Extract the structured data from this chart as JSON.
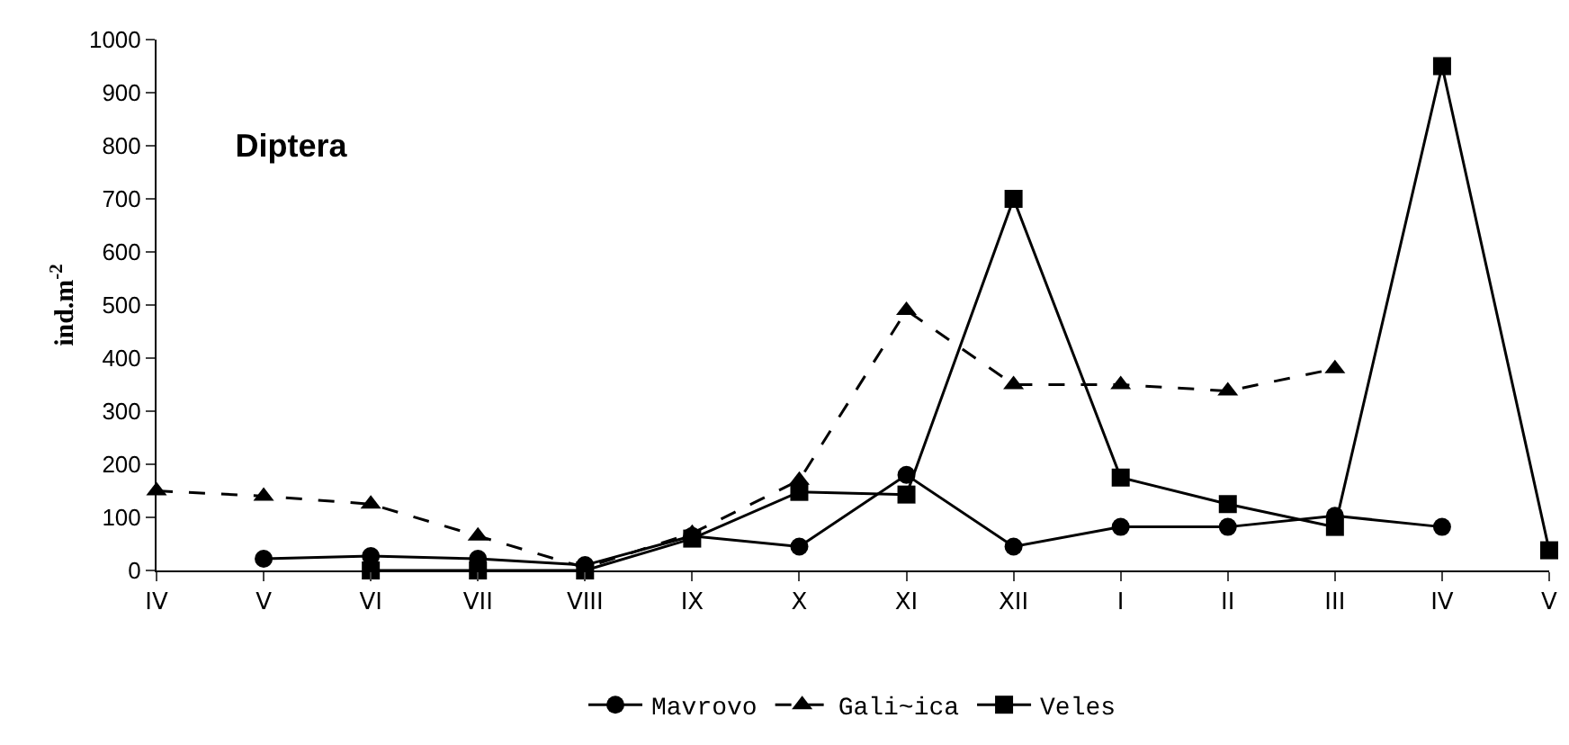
{
  "chart_data": {
    "type": "line",
    "title": "Diptera",
    "ylabel": "ind.m$^{-2}$",
    "categories": [
      "IV",
      "V",
      "VI",
      "VII",
      "VIII",
      "IX",
      "X",
      "XI",
      "XII",
      "I",
      "II",
      "III",
      "IV",
      "V"
    ],
    "series": [
      {
        "name": "Mavrovo",
        "color": "#000000",
        "marker": "circle",
        "line_style": "solid",
        "values": [
          null,
          22,
          27,
          22,
          10,
          65,
          45,
          180,
          45,
          82,
          82,
          103,
          82,
          null
        ]
      },
      {
        "name": "Gali~ica",
        "color": "#000000",
        "marker": "triangle",
        "line_style": "dashed",
        "values": [
          150,
          140,
          125,
          65,
          5,
          70,
          170,
          490,
          350,
          350,
          338,
          380,
          null,
          null
        ]
      },
      {
        "name": "Veles",
        "color": "#000000",
        "marker": "square",
        "line_style": "solid",
        "values": [
          null,
          null,
          0,
          0,
          0,
          60,
          148,
          143,
          700,
          175,
          125,
          82,
          950,
          38
        ]
      }
    ],
    "ylim": [
      0,
      1000
    ],
    "yticks": [
      0,
      100,
      200,
      300,
      400,
      500,
      600,
      700,
      800,
      900,
      1000
    ],
    "legend": "bottom"
  }
}
